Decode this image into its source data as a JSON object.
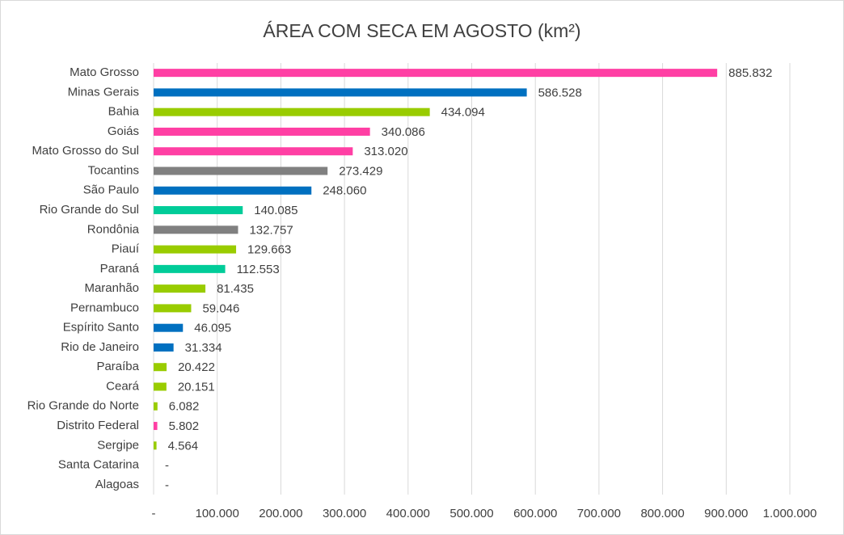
{
  "chart_data": {
    "type": "hbar",
    "title": "ÁREA COM SECA EM AGOSTO (km²)",
    "categories": [
      "Mato Grosso",
      "Minas Gerais",
      "Bahia",
      "Goiás",
      "Mato Grosso do Sul",
      "Tocantins",
      "São Paulo",
      "Rio Grande do Sul",
      "Rondônia",
      "Piauí",
      "Paraná",
      "Maranhão",
      "Pernambuco",
      "Espírito Santo",
      "Rio de Janeiro",
      "Paraíba",
      "Ceará",
      "Rio Grande do Norte",
      "Distrito Federal",
      "Sergipe",
      "Santa Catarina",
      "Alagoas"
    ],
    "values": [
      885832,
      586528,
      434094,
      340086,
      313020,
      273429,
      248060,
      140085,
      132757,
      129663,
      112553,
      81435,
      59046,
      46095,
      31334,
      20422,
      20151,
      6082,
      5802,
      4564,
      0,
      0
    ],
    "value_labels": [
      "885.832",
      "586.528",
      "434.094",
      "340.086",
      "313.020",
      "273.429",
      "248.060",
      "140.085",
      "132.757",
      "129.663",
      "112.553",
      "81.435",
      "59.046",
      "46.095",
      "31.334",
      "20.422",
      "20.151",
      "6.082",
      "5.802",
      "4.564",
      "-",
      "-"
    ],
    "colors": [
      "#ff3fa4",
      "#0070c0",
      "#99cc00",
      "#ff3fa4",
      "#ff3fa4",
      "#808080",
      "#0070c0",
      "#00cc99",
      "#808080",
      "#99cc00",
      "#00cc99",
      "#99cc00",
      "#99cc00",
      "#0070c0",
      "#0070c0",
      "#99cc00",
      "#99cc00",
      "#99cc00",
      "#ff3fa4",
      "#99cc00",
      "#99cc00",
      "#99cc00"
    ],
    "xlim": [
      0,
      1000000
    ],
    "xticks": [
      {
        "value": 0,
        "label": "-"
      },
      {
        "value": 100000,
        "label": "100.000"
      },
      {
        "value": 200000,
        "label": "200.000"
      },
      {
        "value": 300000,
        "label": "300.000"
      },
      {
        "value": 400000,
        "label": "400.000"
      },
      {
        "value": 500000,
        "label": "500.000"
      },
      {
        "value": 600000,
        "label": "600.000"
      },
      {
        "value": 700000,
        "label": "700.000"
      },
      {
        "value": 800000,
        "label": "800.000"
      },
      {
        "value": 900000,
        "label": "900.000"
      },
      {
        "value": 1000000,
        "label": "1.000.000"
      }
    ],
    "grid": true
  }
}
